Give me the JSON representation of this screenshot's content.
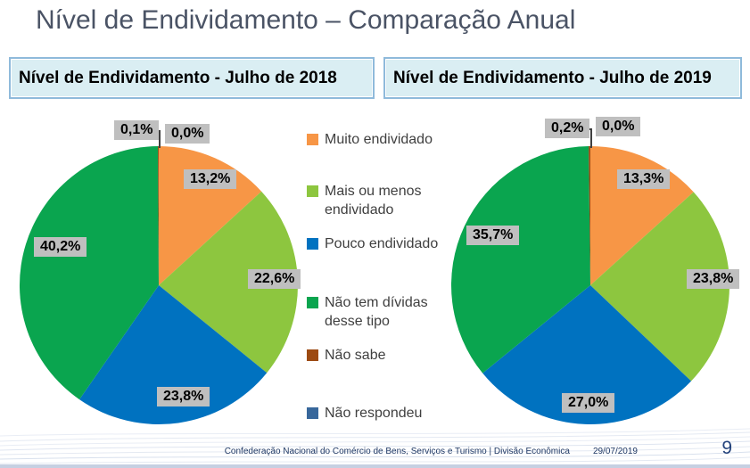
{
  "slide": {
    "title": "Nível de Endividamento – Comparação Anual",
    "footer": {
      "org": "Confederação Nacional do Comércio de Bens, Serviços e Turismo | Divisão Econômica",
      "date": "29/07/2019",
      "page": "9"
    }
  },
  "legend": {
    "position": "center-between-charts",
    "items": [
      {
        "label": "Muito endividado",
        "color": "#F79646"
      },
      {
        "label": "Mais ou menos endividado",
        "color": "#8DC63F"
      },
      {
        "label": "Pouco endividado",
        "color": "#0072C0"
      },
      {
        "label": "Não tem dívidas desse tipo",
        "color": "#0AA54F"
      },
      {
        "label": "Não sabe",
        "color": "#9C4A12"
      },
      {
        "label": "Não respondeu",
        "color": "#38679B"
      }
    ]
  },
  "chart_data": [
    {
      "type": "pie",
      "title": "Nível de Endividamento -  Julho de 2018",
      "categories": [
        "Muito endividado",
        "Mais ou menos endividado",
        "Pouco endividado",
        "Não tem dívidas desse tipo",
        "Não sabe",
        "Não respondeu"
      ],
      "values": [
        13.2,
        22.6,
        23.8,
        40.2,
        0.1,
        0.0
      ],
      "labels": [
        "13,2%",
        "22,6%",
        "23,8%",
        "40,2%",
        "0,1%",
        "0,0%"
      ],
      "colors": [
        "#F79646",
        "#8DC63F",
        "#0072C0",
        "#0AA54F",
        "#9C4A12",
        "#38679B"
      ],
      "start_angle_deg": 0,
      "direction": "clockwise",
      "label_pos": [
        [
          186,
          32
        ],
        [
          258,
          144
        ],
        [
          156,
          276
        ],
        [
          18,
          108
        ],
        [
          108,
          -23
        ],
        [
          165,
          -19
        ]
      ]
    },
    {
      "type": "pie",
      "title": "Nível de Endividamento -  Julho de 2019",
      "categories": [
        "Muito endividado",
        "Mais ou menos endividado",
        "Pouco endividado",
        "Não tem dívidas desse tipo",
        "Não sabe",
        "Não respondeu"
      ],
      "values": [
        13.3,
        23.8,
        27.0,
        35.7,
        0.2,
        0.0
      ],
      "labels": [
        "13,3%",
        "23,8%",
        "27,0%",
        "35,7%",
        "0,2%",
        "0,0%"
      ],
      "colors": [
        "#F79646",
        "#8DC63F",
        "#0072C0",
        "#0AA54F",
        "#9C4A12",
        "#38679B"
      ],
      "start_angle_deg": 0,
      "direction": "clockwise",
      "label_pos": [
        [
          189,
          32
        ],
        [
          267,
          144
        ],
        [
          127,
          283
        ],
        [
          20,
          95
        ],
        [
          108,
          -25
        ],
        [
          165,
          -27
        ]
      ]
    }
  ]
}
